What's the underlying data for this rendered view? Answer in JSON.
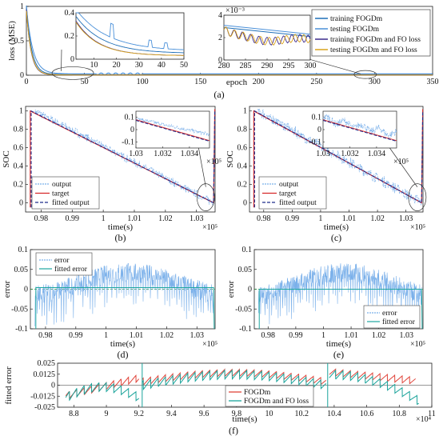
{
  "colors": {
    "training_FOGDm": "#1f6fb8",
    "testing_FOGDm": "#4a90d9",
    "training_FO": "#3b2a8c",
    "testing_FO": "#d9a21b",
    "output": "#7ab0ea",
    "target": "#d62728",
    "fitted": "#1f2c8c",
    "fitted_error": "#1fa7a0",
    "FOGDm_err": "#e0443a",
    "FO_err": "#1aa39a"
  },
  "panel_a": {
    "label": "(a)",
    "xlabel": "epoch",
    "ylabel": "loss (MSE)",
    "xticks": [
      "0",
      "50",
      "100",
      "150",
      "200",
      "250",
      "300",
      "350"
    ],
    "yticks": [
      "0",
      "0.5",
      "1"
    ],
    "legend": [
      "training FOGDm",
      "testing FOGDm",
      "training FOGDm and FO loss",
      "testing FOGDm and FO loss"
    ],
    "inset1": {
      "xticks": [
        "10",
        "20",
        "30",
        "40",
        "50"
      ],
      "yticks": [
        "0",
        "0.2",
        "0.4"
      ]
    },
    "inset2": {
      "exponent": "×10⁻³",
      "xticks": [
        "280",
        "285",
        "290",
        "295",
        "300"
      ],
      "yticks": [
        "0",
        "2",
        "4"
      ]
    }
  },
  "panel_b": {
    "label": "(b)",
    "xlabel": "time(s)",
    "ylabel": "SOC",
    "exponent": "×10⁵",
    "xticks": [
      "0.98",
      "0.99",
      "1",
      "1.01",
      "1.02",
      "1.03"
    ],
    "yticks": [
      "0",
      "0.2",
      "0.4",
      "0.6",
      "0.8",
      "1"
    ],
    "legend": [
      "output",
      "target",
      "fitted output"
    ],
    "inset": {
      "xticks": [
        "1.03",
        "1.032",
        "1.034"
      ],
      "yticks": [
        "0.1",
        "0",
        "-0.1"
      ],
      "exponent": "×10⁵"
    }
  },
  "panel_c": {
    "label": "(c)",
    "xlabel": "time(s)",
    "ylabel": "SOC",
    "exponent": "×10⁵",
    "xticks": [
      "0.98",
      "0.99",
      "1",
      "1.01",
      "1.02",
      "1.03"
    ],
    "yticks": [
      "0",
      "0.2",
      "0.4",
      "0.6",
      "0.8",
      "1"
    ],
    "legend": [
      "output",
      "target",
      "fitted output"
    ],
    "inset": {
      "xticks": [
        "1.03",
        "1.032",
        "1.034"
      ],
      "yticks": [
        "0.1",
        "0",
        "-0.1"
      ],
      "exponent": "×10⁵"
    }
  },
  "panel_d": {
    "label": "(d)",
    "xlabel": "time(s)",
    "ylabel": "error",
    "exponent": "×10⁵",
    "xticks": [
      "0.98",
      "0.99",
      "1",
      "1.01",
      "1.02",
      "1.03"
    ],
    "yticks": [
      "-0.1",
      "-0.05",
      "0",
      "0.05",
      "0.1"
    ],
    "legend": [
      "error",
      "fitted error"
    ]
  },
  "panel_e": {
    "label": "(e)",
    "xlabel": "time(s)",
    "ylabel": "error",
    "exponent": "×10⁵",
    "xticks": [
      "0.98",
      "0.99",
      "1",
      "1.01",
      "1.02",
      "1.03"
    ],
    "yticks": [
      "-0.1",
      "-0.05",
      "0",
      "0.05",
      "0.1"
    ],
    "legend": [
      "error",
      "fitted error"
    ]
  },
  "panel_f": {
    "label": "(f)",
    "xlabel": "time(s)",
    "ylabel": "fitted error",
    "exponent": "×10⁴",
    "xticks": [
      "8.8",
      "9",
      "9.2",
      "9.4",
      "9.6",
      "9.8",
      "10",
      "10.2",
      "10.4",
      "10.6",
      "10.8",
      "11"
    ],
    "yticks": [
      "-0.025",
      "-0.0125",
      "0",
      "0.0125",
      "0.025"
    ],
    "legend": [
      "FOGDm",
      "FOGDm and FO loss"
    ]
  },
  "chart_data": [
    {
      "type": "line",
      "panel": "a",
      "xlim": [
        0,
        350
      ],
      "ylim": [
        0,
        1
      ],
      "series": [
        {
          "name": "training FOGDm",
          "x": [
            0,
            5,
            10,
            20,
            50,
            100,
            200,
            300,
            350
          ],
          "values": [
            1.0,
            0.3,
            0.12,
            0.07,
            0.03,
            0.01,
            0.004,
            0.002,
            0.002
          ]
        },
        {
          "name": "testing FOGDm",
          "x": [
            0,
            5,
            10,
            20,
            50,
            100,
            200,
            300,
            350
          ],
          "values": [
            0.98,
            0.28,
            0.15,
            0.1,
            0.04,
            0.015,
            0.005,
            0.003,
            0.003
          ]
        },
        {
          "name": "training FOGDm and FO loss",
          "x": [
            0,
            5,
            10,
            20,
            50,
            100,
            200,
            300,
            350
          ],
          "values": [
            0.95,
            0.25,
            0.1,
            0.06,
            0.03,
            0.01,
            0.004,
            0.002,
            0.002
          ]
        },
        {
          "name": "testing FOGDm and FO loss",
          "x": [
            0,
            5,
            10,
            20,
            50,
            100,
            200,
            300,
            350
          ],
          "values": [
            0.93,
            0.24,
            0.1,
            0.06,
            0.03,
            0.01,
            0.004,
            0.002,
            0.002
          ]
        }
      ]
    },
    {
      "type": "line",
      "panel": "b",
      "xlim": [
        0.975,
        1.036
      ],
      "ylim": [
        -0.1,
        1.05
      ],
      "series": [
        {
          "name": "output"
        },
        {
          "name": "target"
        },
        {
          "name": "fitted output"
        }
      ]
    },
    {
      "type": "line",
      "panel": "c",
      "xlim": [
        0.975,
        1.036
      ],
      "ylim": [
        -0.1,
        1.05
      ],
      "series": [
        {
          "name": "output"
        },
        {
          "name": "target"
        },
        {
          "name": "fitted output"
        }
      ]
    },
    {
      "type": "line",
      "panel": "d",
      "xlim": [
        0.975,
        1.036
      ],
      "ylim": [
        -0.1,
        0.1
      ],
      "series": [
        {
          "name": "error"
        },
        {
          "name": "fitted error"
        }
      ]
    },
    {
      "type": "line",
      "panel": "e",
      "xlim": [
        0.975,
        1.036
      ],
      "ylim": [
        -0.1,
        0.1
      ],
      "series": [
        {
          "name": "error"
        },
        {
          "name": "fitted error"
        }
      ]
    },
    {
      "type": "line",
      "panel": "f",
      "xlim": [
        8.7,
        11.0
      ],
      "ylim": [
        -0.025,
        0.025
      ],
      "series": [
        {
          "name": "FOGDm"
        },
        {
          "name": "FOGDm and FO loss"
        }
      ]
    }
  ]
}
